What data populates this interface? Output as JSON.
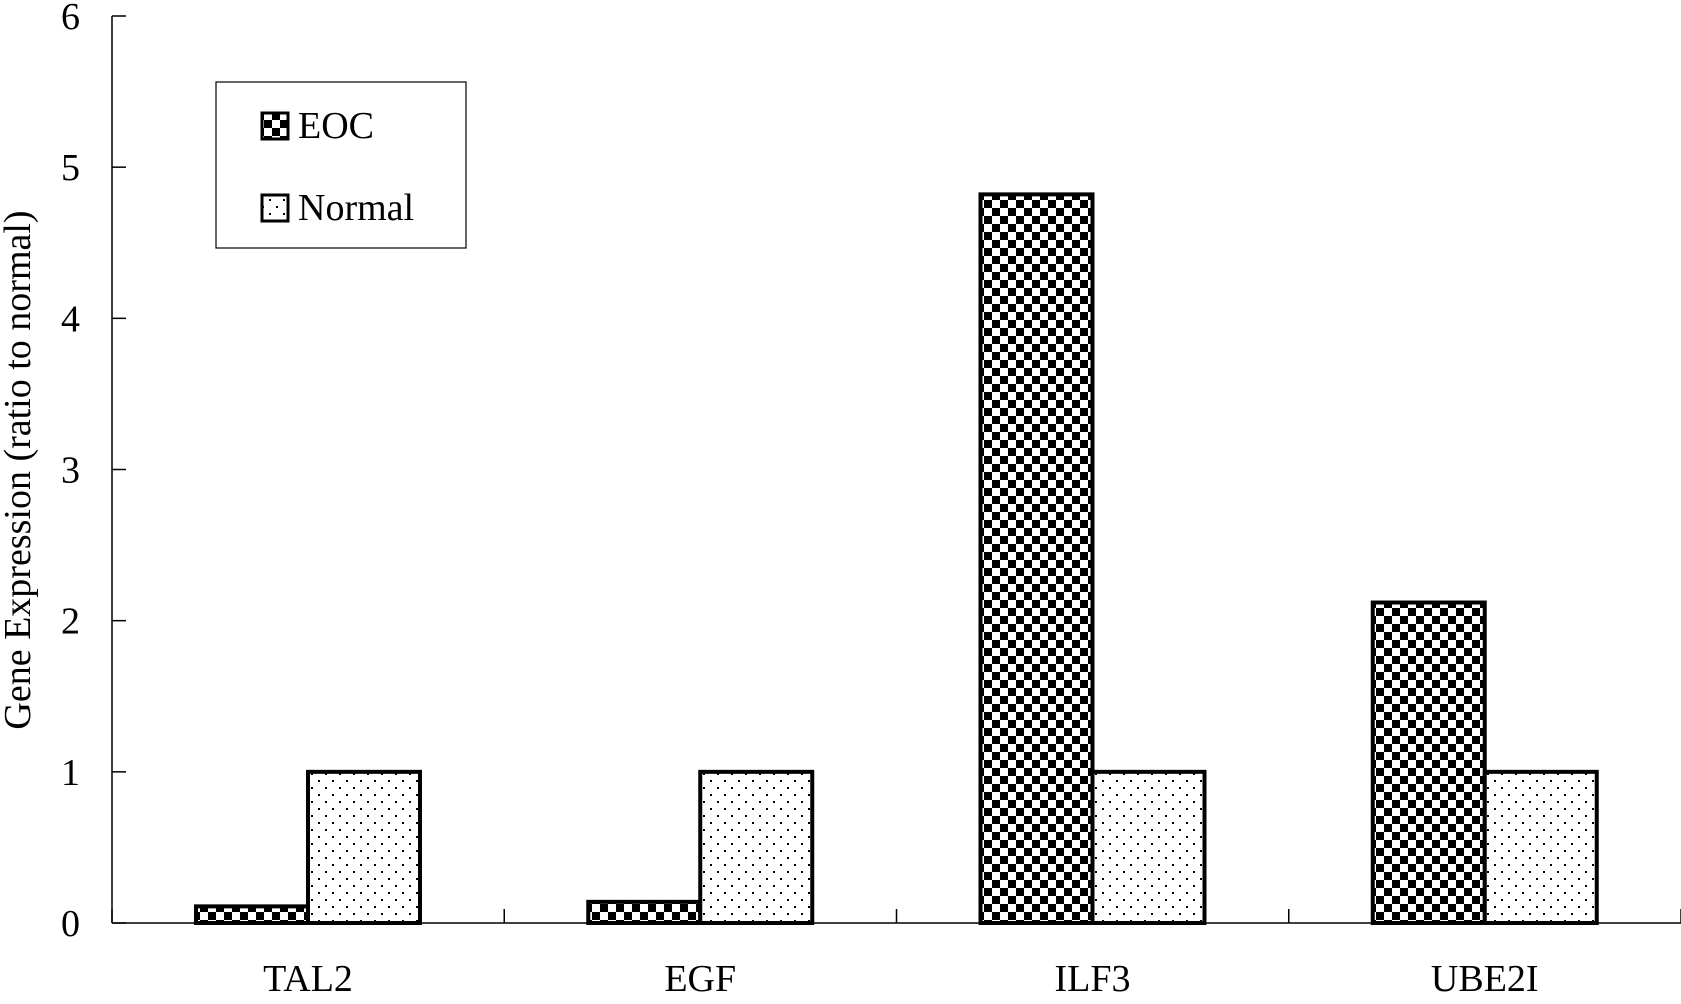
{
  "chart_data": {
    "type": "bar",
    "categories": [
      "TAL2",
      "EGF",
      "ILF3",
      "UBE2I"
    ],
    "series": [
      {
        "name": "EOC",
        "values": [
          0.11,
          0.14,
          4.82,
          2.12
        ],
        "pattern": "checker"
      },
      {
        "name": "Normal",
        "values": [
          1.0,
          1.0,
          1.0,
          1.0
        ],
        "pattern": "dots"
      }
    ],
    "title": "",
    "xlabel": "",
    "ylabel": "Gene Expression (ratio to normal)",
    "ylim": [
      0,
      6
    ],
    "yticks": [
      "0",
      "1",
      "2",
      "3",
      "4",
      "5",
      "6"
    ],
    "grid": false,
    "legend": {
      "position": "top-left",
      "entries": [
        "EOC",
        "Normal"
      ]
    },
    "colors": {
      "bar_stroke": "#000000",
      "fill": "#000000",
      "background": "#ffffff"
    }
  }
}
